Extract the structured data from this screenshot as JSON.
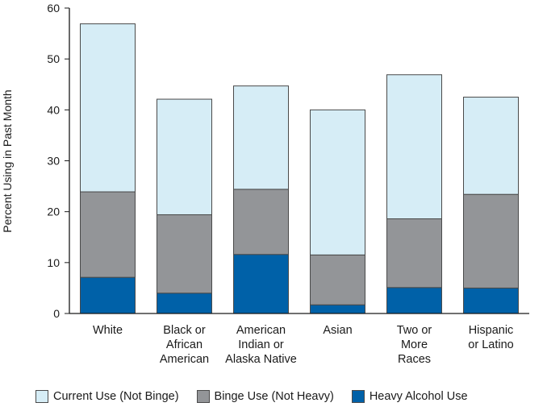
{
  "chart_data": {
    "type": "bar",
    "stacked": true,
    "ylabel": "Percent Using in Past Month",
    "xlabel": "",
    "ylim": [
      0,
      60
    ],
    "yticks": [
      0,
      10,
      20,
      30,
      40,
      50,
      60
    ],
    "categories": [
      [
        "White"
      ],
      [
        "Black or",
        "African",
        "American"
      ],
      [
        "American",
        "Indian or",
        "Alaska Native"
      ],
      [
        "Asian"
      ],
      [
        "Two or",
        "More",
        "Races"
      ],
      [
        "Hispanic",
        "or Latino"
      ]
    ],
    "series": [
      {
        "name": "Heavy Alcohol Use",
        "color": "#0061a8",
        "values": [
          7.1,
          4.0,
          11.6,
          1.7,
          5.1,
          5.0
        ]
      },
      {
        "name": "Binge Use (Not Heavy)",
        "color": "#939598",
        "values": [
          16.8,
          15.4,
          12.8,
          9.8,
          13.5,
          18.4
        ]
      },
      {
        "name": "Current Use (Not Binge)",
        "color": "#d6edf6",
        "values": [
          33.0,
          22.7,
          20.3,
          28.5,
          28.3,
          19.1
        ]
      }
    ]
  },
  "legend": [
    {
      "label": "Current Use (Not Binge)",
      "color": "#d6edf6"
    },
    {
      "label": "Binge Use (Not Heavy)",
      "color": "#939598"
    },
    {
      "label": "Heavy Alcohol Use",
      "color": "#0061a8"
    }
  ]
}
